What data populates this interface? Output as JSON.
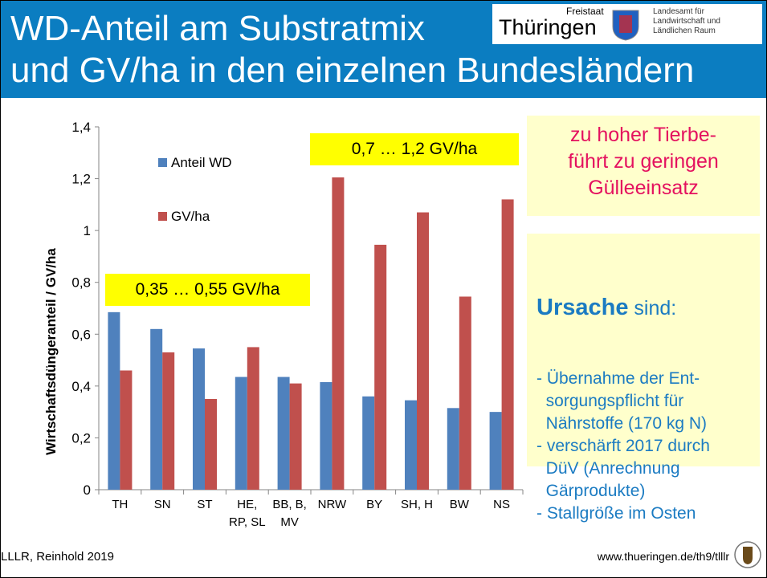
{
  "header": {
    "title": [
      "WD-Anteil am Substratmix",
      "und GV/ha in den einzelnen Bundesländern"
    ],
    "logo": {
      "state": "Freistaat",
      "name": "Thüringen",
      "agency": [
        "Landesamt für",
        "Landwirtschaft und",
        "Ländlichen Raum"
      ]
    }
  },
  "chart_data": {
    "type": "bar",
    "ylabel": "Wirtschaftsdüngeranteil / GV/ha",
    "categories": [
      "TH",
      "SN",
      "ST",
      "HE,\nRP, SL",
      "BB, B,\nMV",
      "NRW",
      "BY",
      "SH, H",
      "BW",
      "NS"
    ],
    "series": [
      {
        "name": "Anteil WD",
        "color": "#4f81bd",
        "values": [
          0.685,
          0.62,
          0.545,
          0.435,
          0.435,
          0.415,
          0.36,
          0.345,
          0.315,
          0.3
        ]
      },
      {
        "name": "GV/ha",
        "color": "#c0504d",
        "values": [
          0.46,
          0.53,
          0.35,
          0.55,
          0.41,
          1.205,
          0.945,
          1.07,
          0.745,
          1.12
        ]
      }
    ],
    "ylim": [
      0,
      1.4
    ],
    "yticks": [
      0,
      {
        "value": 0.2,
        "label": "0,2"
      },
      {
        "value": 0.4,
        "label": "0,4"
      },
      {
        "value": 0.6,
        "label": "0,6"
      },
      {
        "value": 0.8,
        "label": "0,8"
      },
      1,
      {
        "value": 1.2,
        "label": "1,2"
      },
      {
        "value": 1.4,
        "label": "1,4"
      }
    ],
    "grid": false,
    "annotations": [
      "0,7 … 1,2 GV/ha",
      "0,35 … 0,55 GV/ha"
    ]
  },
  "boxes": {
    "conclusion": [
      "zu hoher Tierbe-",
      "führt zu geringen",
      "Gülleeinsatz"
    ],
    "cause": {
      "heading": "Ursache",
      "suffix": " sind:",
      "items": [
        [
          "- Übernahme der Ent-",
          "  sorgungspflicht für",
          "  Nährstoffe (170 kg N)"
        ],
        [
          "- verschärft 2017 durch",
          "  DüV (Anrechnung",
          "  Gärprodukte)"
        ],
        [
          "- Stallgröße im Osten"
        ]
      ]
    }
  },
  "footer": {
    "left": "LLLR, Reinhold 2019",
    "right": "www.thueringen.de/th9/tlllr"
  }
}
